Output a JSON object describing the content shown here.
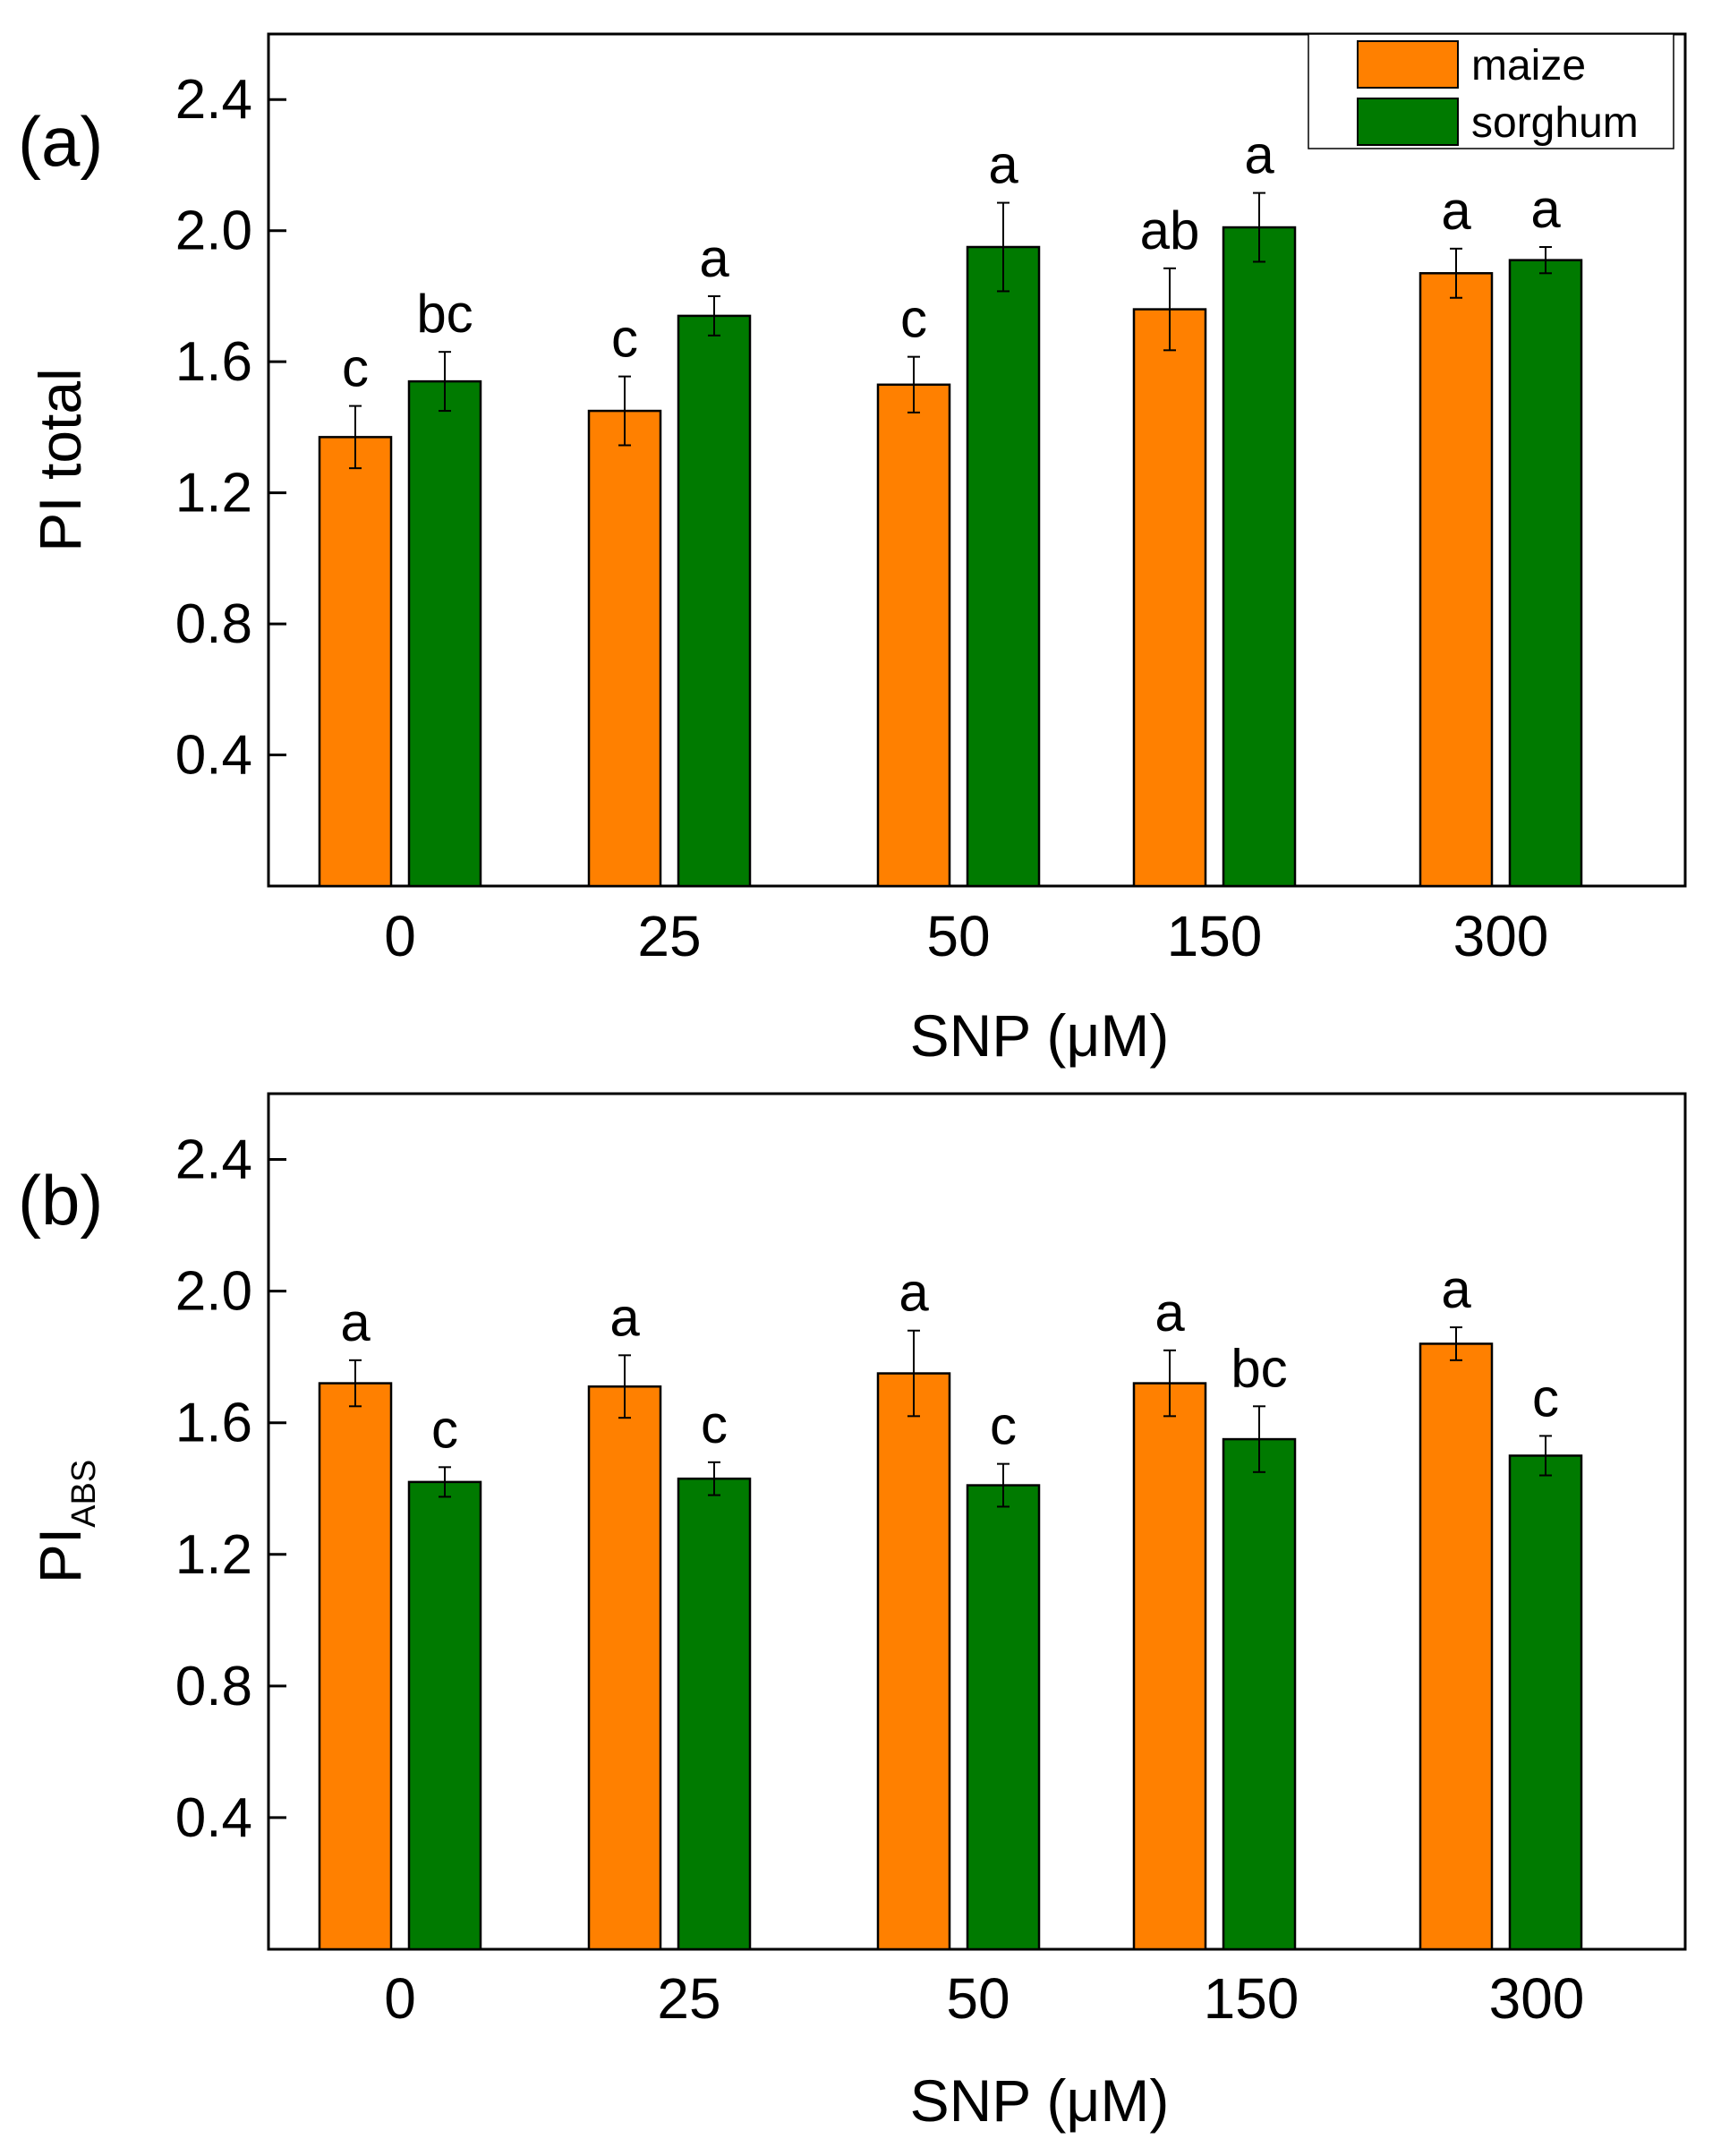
{
  "chart_data": [
    {
      "type": "bar",
      "panel_label": "(a)",
      "categories": [
        "0",
        "25",
        "50",
        "150",
        "300"
      ],
      "xlabel": "SNP (μM)",
      "ylabel": "PI total",
      "ylabel_sub": "",
      "yticks": [
        "0.4",
        "0.8",
        "1.2",
        "1.6",
        "2.0",
        "2.4"
      ],
      "ylim": [
        0.0,
        2.6
      ],
      "grid": false,
      "legend": "top-right",
      "colors": [
        "#ff8000",
        "#007a00"
      ],
      "series": [
        {
          "name": "maize",
          "values": [
            1.37,
            1.45,
            1.53,
            1.76,
            1.87
          ],
          "errors": [
            0.095,
            0.105,
            0.085,
            0.125,
            0.075
          ],
          "letters": [
            "c",
            "c",
            "c",
            "ab",
            "a"
          ]
        },
        {
          "name": "sorghum",
          "values": [
            1.54,
            1.74,
            1.95,
            2.01,
            1.91
          ],
          "errors": [
            0.09,
            0.06,
            0.135,
            0.105,
            0.04
          ],
          "letters": [
            "bc",
            "a",
            "a",
            "a",
            "a"
          ]
        }
      ]
    },
    {
      "type": "bar",
      "panel_label": "(b)",
      "categories": [
        "0",
        "25",
        "50",
        "150",
        "300"
      ],
      "xlabel": "SNP (μM)",
      "ylabel": "PI",
      "ylabel_sub": "ABS",
      "yticks": [
        "0.4",
        "0.8",
        "1.2",
        "1.6",
        "2.0",
        "2.4"
      ],
      "ylim": [
        0.0,
        2.6
      ],
      "grid": false,
      "legend": "none",
      "colors": [
        "#ff8000",
        "#007a00"
      ],
      "series": [
        {
          "name": "maize",
          "values": [
            1.72,
            1.71,
            1.75,
            1.72,
            1.84
          ],
          "errors": [
            0.07,
            0.095,
            0.13,
            0.1,
            0.05
          ],
          "letters": [
            "a",
            "a",
            "a",
            "a",
            "a"
          ]
        },
        {
          "name": "sorghum",
          "values": [
            1.42,
            1.43,
            1.41,
            1.55,
            1.5
          ],
          "errors": [
            0.045,
            0.05,
            0.065,
            0.1,
            0.06
          ],
          "letters": [
            "c",
            "c",
            "c",
            "bc",
            "c"
          ]
        }
      ]
    }
  ]
}
